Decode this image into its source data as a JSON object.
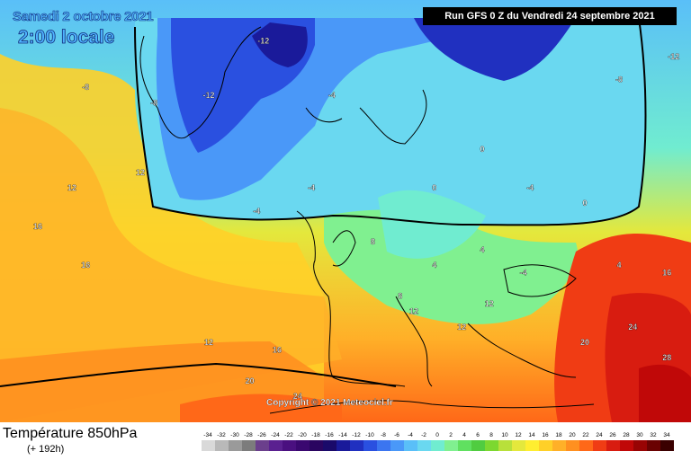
{
  "header": {
    "date_title": "Samedi 2 octobre 2021",
    "time_title": "2:00 locale",
    "run_banner": "Run GFS 0 Z du Vendredi 24 septembre 2021"
  },
  "footer": {
    "parameter_title": "Température 850hPa",
    "lead_time": "(+ 192h)",
    "copyright": "Copyright © 2021 Meteociel.fr"
  },
  "legend": {
    "scale_labels": [
      "-34",
      "-32",
      "-30",
      "-28",
      "-26",
      "-24",
      "-22",
      "-20",
      "-18",
      "-16",
      "-14",
      "-12",
      "-10",
      "-8",
      "-6",
      "-4",
      "-2",
      "0",
      "2",
      "4",
      "6",
      "8",
      "10",
      "12",
      "14",
      "16",
      "18",
      "20",
      "22",
      "24",
      "26",
      "28",
      "30",
      "32",
      "34"
    ],
    "colors": [
      "#d9d9d9",
      "#b9b9b9",
      "#9a9a9a",
      "#7c7c7c",
      "#6b3f8c",
      "#5a2090",
      "#4a1080",
      "#3a0870",
      "#2a0560",
      "#1a0a6a",
      "#1a1a9a",
      "#2030c0",
      "#2a50e0",
      "#3b75f0",
      "#4a98f8",
      "#5abff8",
      "#6ad8f0",
      "#70ecd0",
      "#80f090",
      "#60e060",
      "#50cc40",
      "#7cd830",
      "#b8e03a",
      "#e4e83c",
      "#ffee30",
      "#ffd028",
      "#ffb028",
      "#ff9020",
      "#ff6818",
      "#f03c14",
      "#d81c10",
      "#c00808",
      "#980404",
      "#6a0202",
      "#3a0000"
    ]
  },
  "temperature_labels": [
    {
      "text": "-8",
      "lon": -38.0,
      "lat": 71.0
    },
    {
      "text": "-8",
      "lon": -28.0,
      "lat": 69.0
    },
    {
      "text": "-12",
      "lon": -12.0,
      "lat": 77.0
    },
    {
      "text": "-12",
      "lon": -20.0,
      "lat": 70.0
    },
    {
      "text": "-4",
      "lon": -2.0,
      "lat": 70.0
    },
    {
      "text": "-12",
      "lon": 48.0,
      "lat": 75.0
    },
    {
      "text": "-8",
      "lon": 40.0,
      "lat": 72.0
    },
    {
      "text": "-4",
      "lon": 55.0,
      "lat": 63.0
    },
    {
      "text": "-4",
      "lon": 65.0,
      "lat": 62.0
    },
    {
      "text": "0",
      "lon": 20.0,
      "lat": 63.0
    },
    {
      "text": "0",
      "lon": 13.0,
      "lat": 58.0
    },
    {
      "text": "0",
      "lon": 35.0,
      "lat": 56.0
    },
    {
      "text": "-4",
      "lon": 27.0,
      "lat": 58.0
    },
    {
      "text": "-4",
      "lon": -5.0,
      "lat": 58.0
    },
    {
      "text": "-4",
      "lon": -13.0,
      "lat": 55.0
    },
    {
      "text": "4",
      "lon": 20.0,
      "lat": 50.0
    },
    {
      "text": "4",
      "lon": 13.0,
      "lat": 48.0
    },
    {
      "text": "-4",
      "lon": 26.0,
      "lat": 47.0
    },
    {
      "text": "4",
      "lon": 40.0,
      "lat": 48.0
    },
    {
      "text": "8",
      "lon": 4.0,
      "lat": 51.0
    },
    {
      "text": "8",
      "lon": 8.0,
      "lat": 44.0
    },
    {
      "text": "12",
      "lon": -30.0,
      "lat": 60.0
    },
    {
      "text": "12",
      "lon": -40.0,
      "lat": 58.0
    },
    {
      "text": "12",
      "lon": 10.0,
      "lat": 42.0
    },
    {
      "text": "12",
      "lon": 21.0,
      "lat": 43.0
    },
    {
      "text": "12",
      "lon": 17.0,
      "lat": 40.0
    },
    {
      "text": "12",
      "lon": -20.0,
      "lat": 38.0
    },
    {
      "text": "16",
      "lon": -45.0,
      "lat": 53.0
    },
    {
      "text": "16",
      "lon": -38.0,
      "lat": 48.0
    },
    {
      "text": "16",
      "lon": -10.0,
      "lat": 37.0
    },
    {
      "text": "16",
      "lon": 47.0,
      "lat": 47.0
    },
    {
      "text": "20",
      "lon": 35.0,
      "lat": 38.0
    },
    {
      "text": "20",
      "lon": -14.0,
      "lat": 33.0
    },
    {
      "text": "24",
      "lon": 42.0,
      "lat": 40.0
    },
    {
      "text": "24",
      "lon": -7.0,
      "lat": 31.0
    },
    {
      "text": "28",
      "lon": 47.0,
      "lat": 36.0
    }
  ]
}
